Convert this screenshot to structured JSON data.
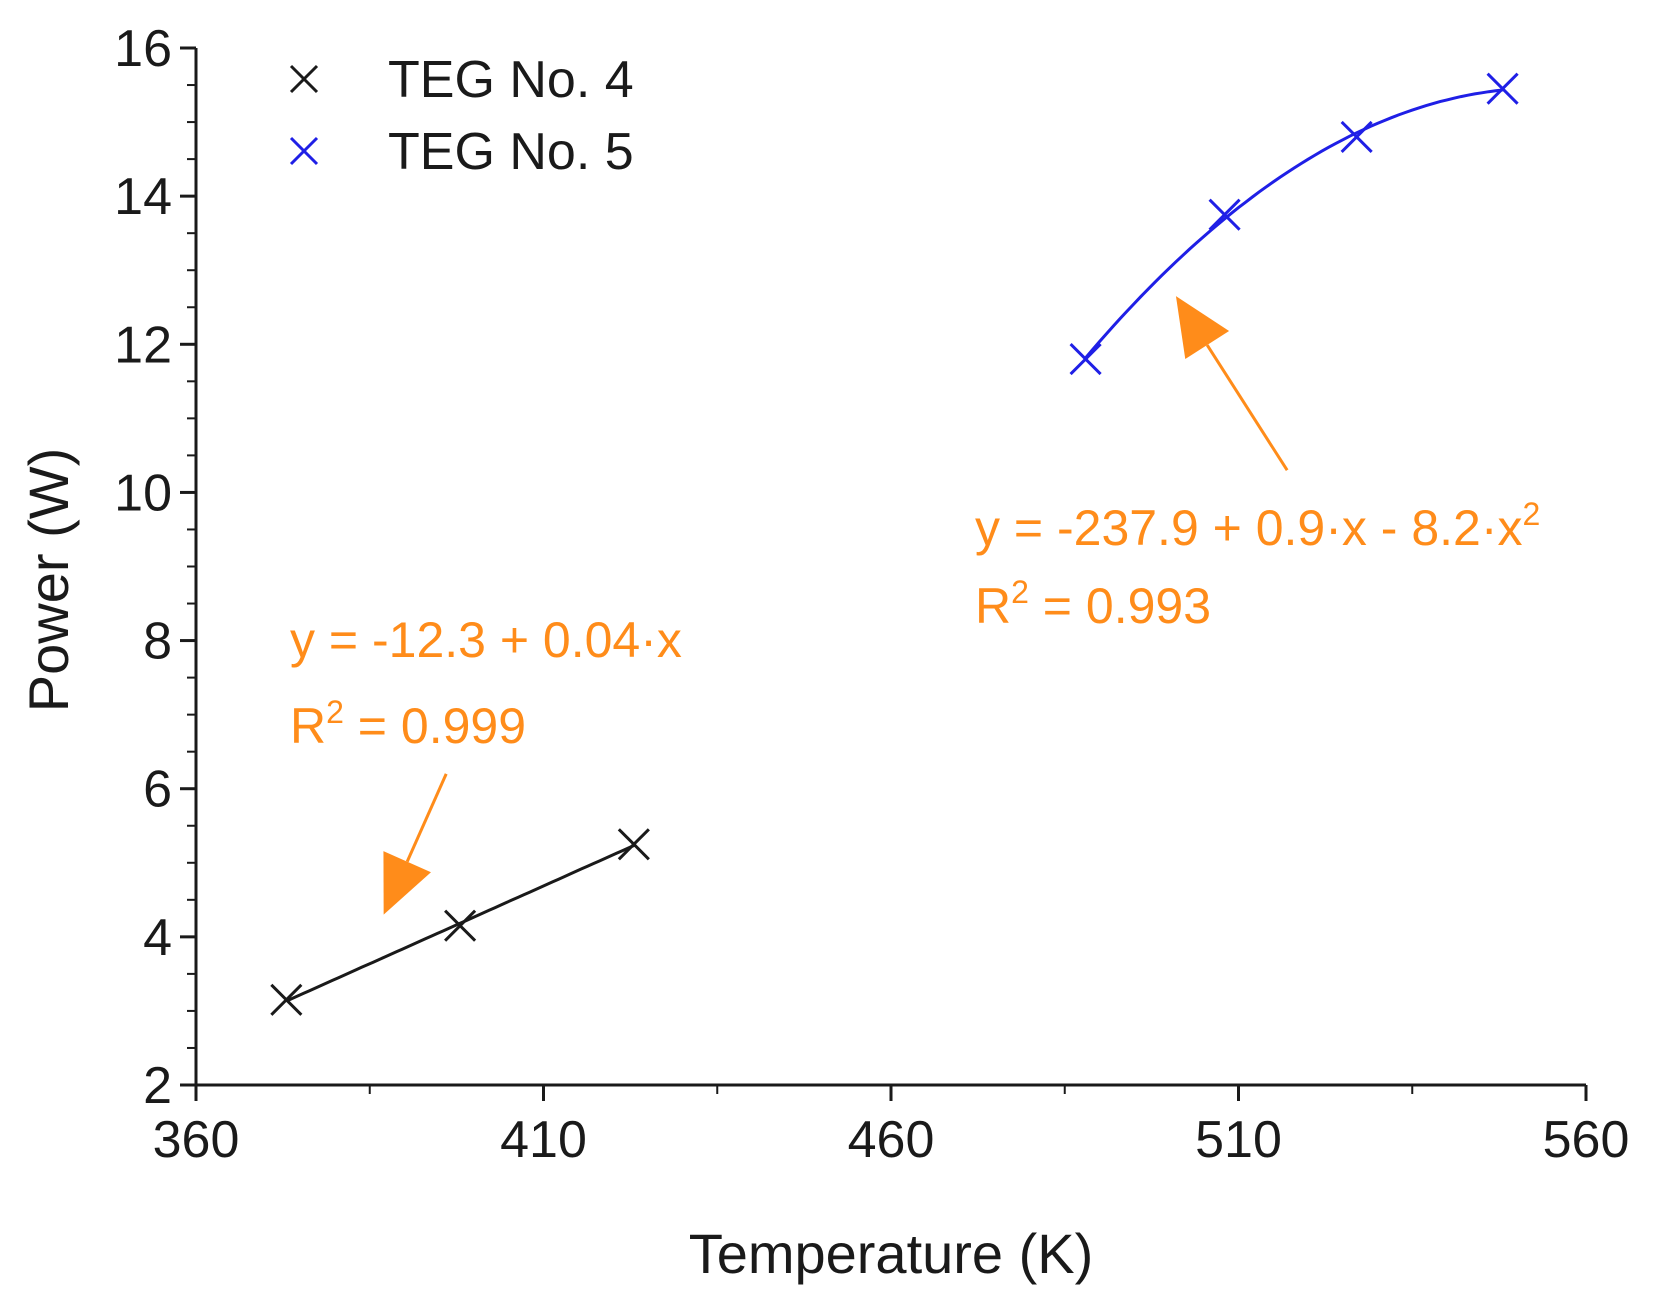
{
  "chart_data": {
    "type": "scatter",
    "title": "",
    "xlabel": "Temperature (K)",
    "ylabel": "Power (W)",
    "xlim": [
      360,
      560
    ],
    "ylim": [
      2,
      16
    ],
    "x_ticks": [
      360,
      410,
      460,
      510,
      560
    ],
    "y_ticks": [
      2,
      4,
      6,
      8,
      10,
      12,
      14,
      16
    ],
    "grid": false,
    "legend_position": "top-left",
    "series": [
      {
        "name": "TEG No. 4",
        "color": "#1a1a1a",
        "marker": "x",
        "x": [
          373,
          398,
          423
        ],
        "y": [
          3.15,
          4.15,
          5.25
        ],
        "fit": {
          "type": "linear",
          "x_range": [
            373,
            423
          ]
        }
      },
      {
        "name": "TEG No. 5",
        "color": "#1f1fe6",
        "marker": "x",
        "x": [
          488,
          508,
          527,
          548
        ],
        "y": [
          11.8,
          13.75,
          14.8,
          15.45
        ],
        "fit": {
          "type": "quadratic",
          "x_range": [
            488,
            548
          ]
        }
      }
    ],
    "annotations": [
      {
        "id": "fit-4",
        "color": "#ff8c1a",
        "equation": "y = -12.3 + 0.04·x",
        "r2_label": "R",
        "r2_exp": "2",
        "r2_value": " = 0.999",
        "arrow_from": [
          396,
          6.2
        ],
        "arrow_to": [
          387,
          4.3
        ]
      },
      {
        "id": "fit-5",
        "color": "#ff8c1a",
        "equation_main": "y = -237.9 + 0.9·x - 8.2·x",
        "equation_exp": "2",
        "r2_label": "R",
        "r2_exp": "2",
        "r2_value": " = 0.993",
        "arrow_from": [
          517,
          10.3
        ],
        "arrow_to": [
          501,
          12.65
        ]
      }
    ]
  }
}
